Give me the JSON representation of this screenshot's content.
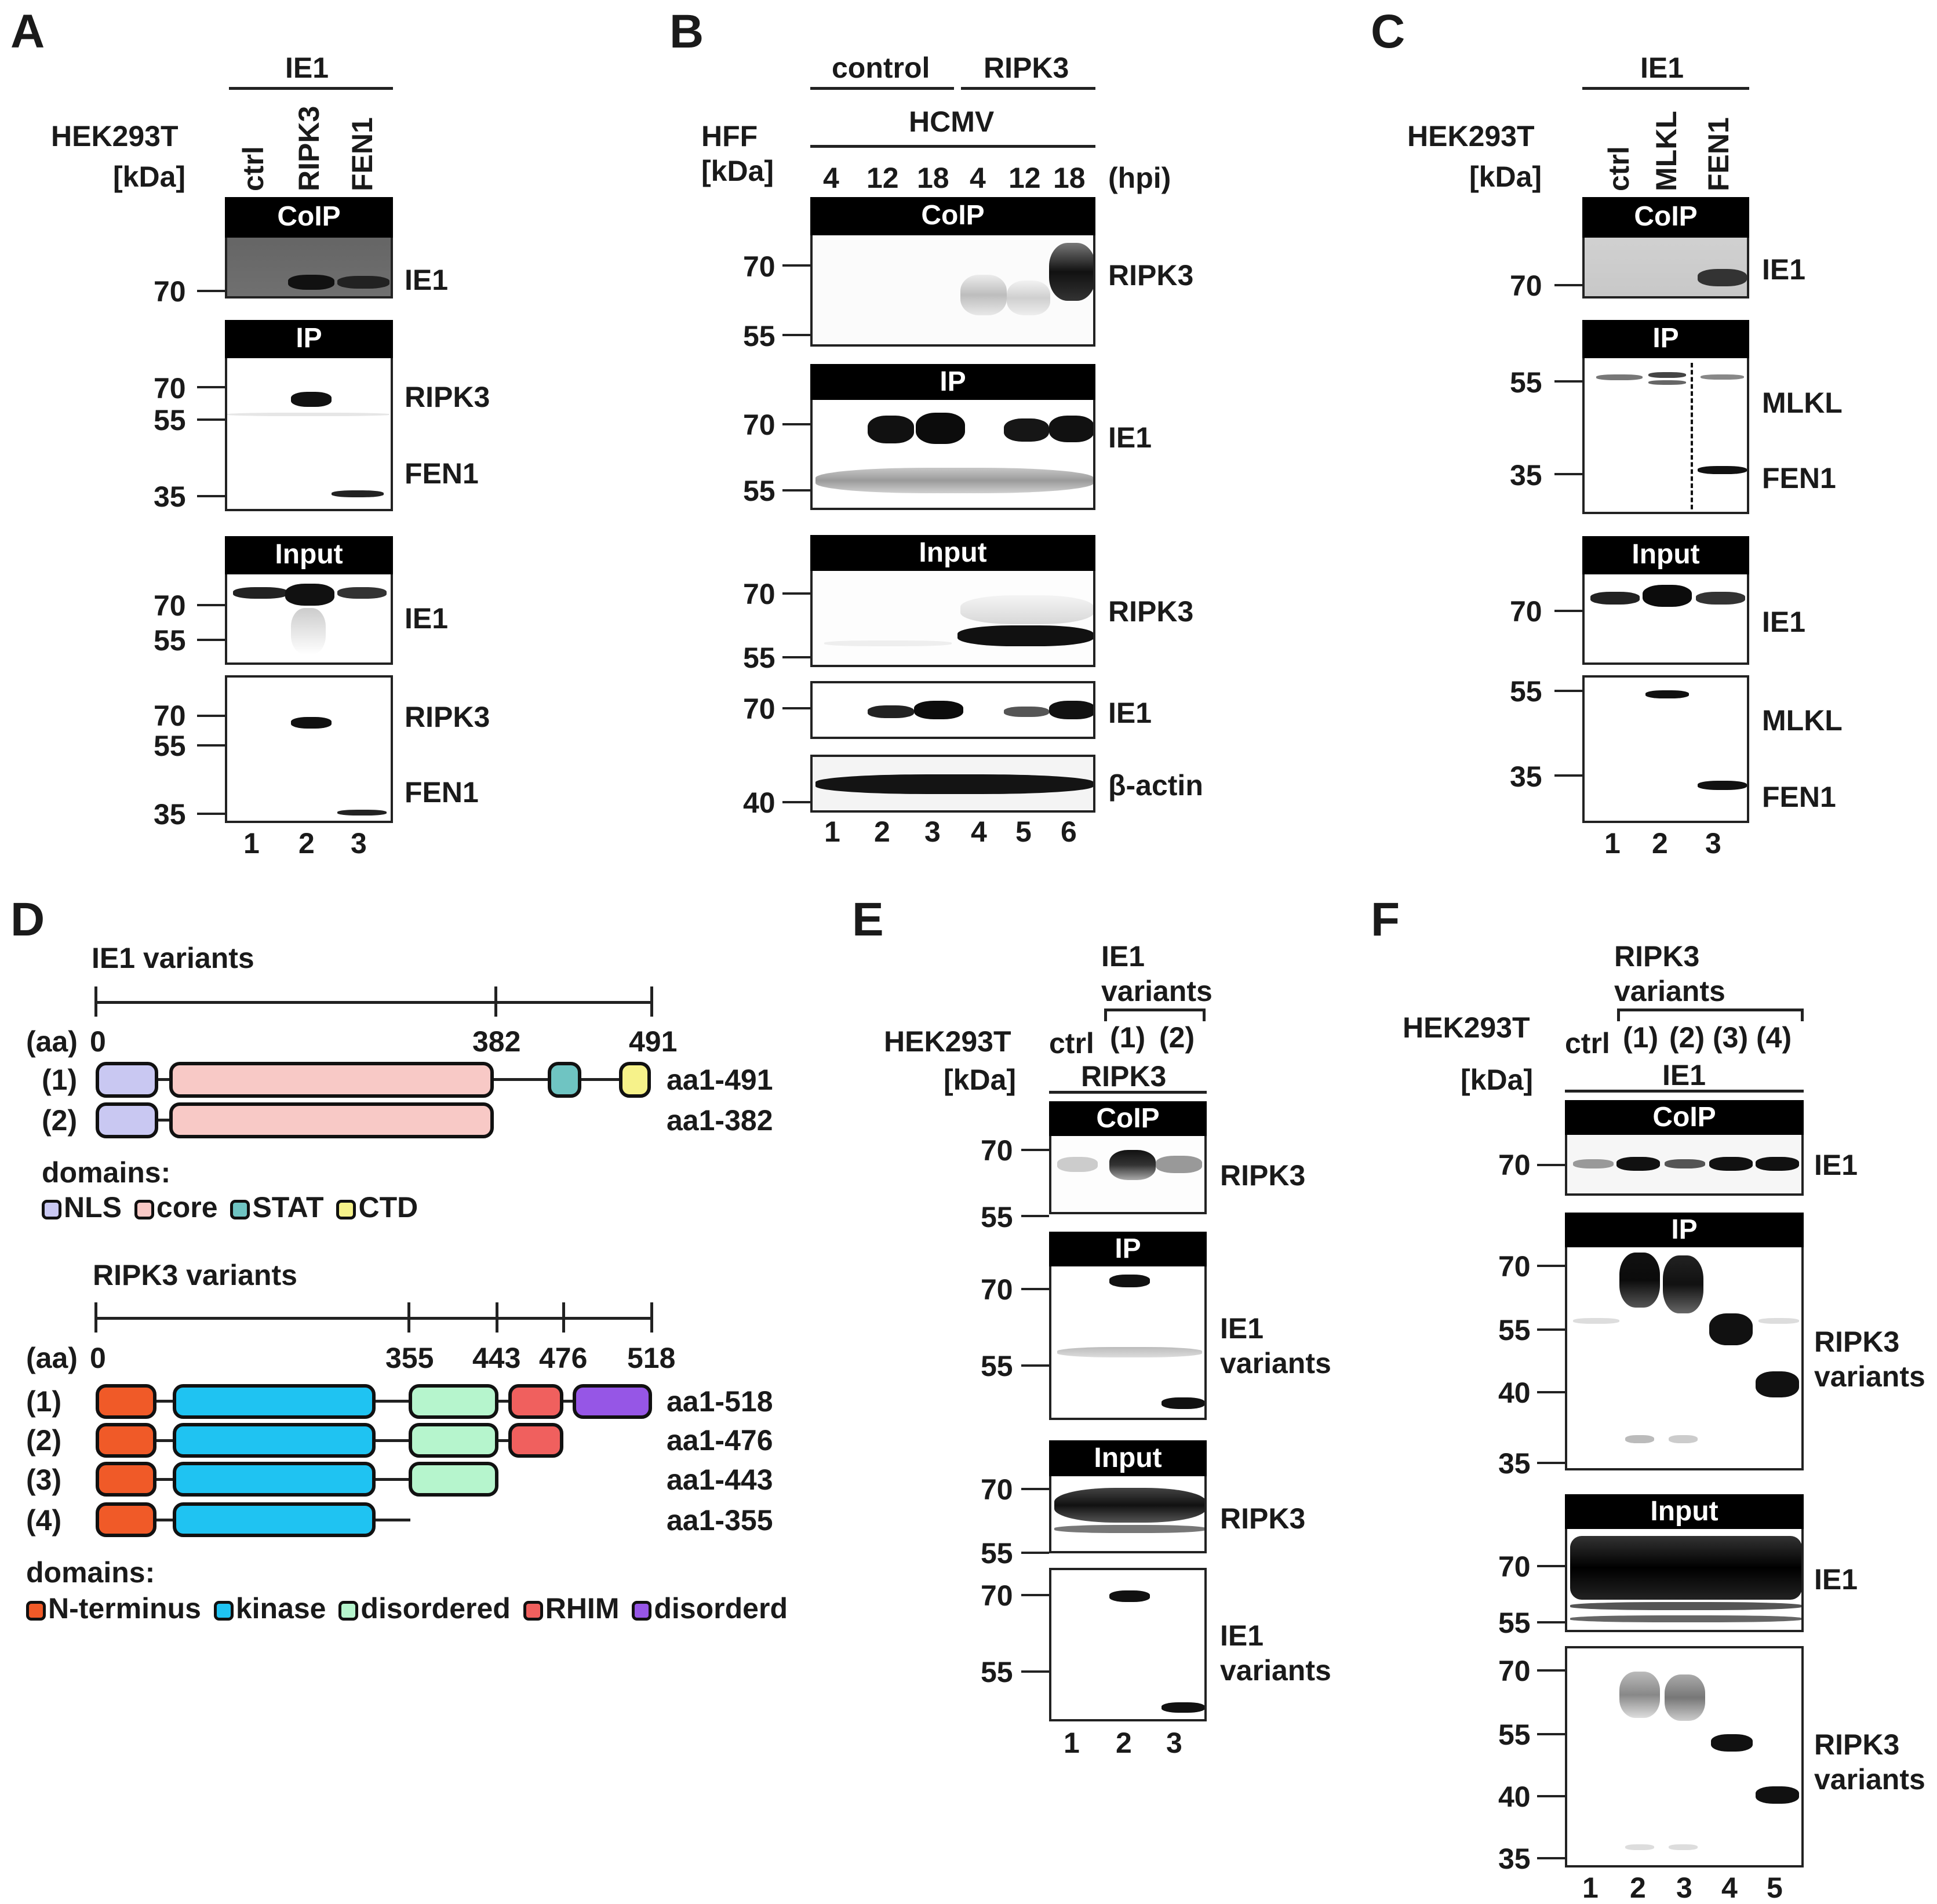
{
  "panels": {
    "A": {
      "letter": "A",
      "group_label": "IE1",
      "cell_line": "HEK293T",
      "kda": "[kDa]",
      "lanes_top": [
        "ctrl",
        "RIPK3",
        "FEN1"
      ],
      "lane_numbers": [
        "1",
        "2",
        "3"
      ],
      "blots": [
        {
          "header": "CoIP",
          "markers": [
            "70"
          ],
          "labels": [
            "IE1"
          ]
        },
        {
          "header": "IP",
          "markers": [
            "70",
            "55",
            "35"
          ],
          "labels": [
            "RIPK3",
            "FEN1"
          ]
        },
        {
          "header": "Input",
          "markers": [
            "70",
            "55"
          ],
          "labels": [
            "IE1"
          ]
        },
        {
          "header": "",
          "markers": [
            "70",
            "55",
            "35"
          ],
          "labels": [
            "RIPK3",
            "FEN1"
          ]
        }
      ]
    },
    "B": {
      "letter": "B",
      "group_labels": [
        "control",
        "RIPK3"
      ],
      "cell_line": "HFF",
      "kda": "[kDa]",
      "virus": "HCMV",
      "timepoints": [
        "4",
        "12",
        "18",
        "4",
        "12",
        "18"
      ],
      "time_unit": "(hpi)",
      "lane_numbers": [
        "1",
        "2",
        "3",
        "4",
        "5",
        "6"
      ],
      "blots": [
        {
          "header": "CoIP",
          "markers": [
            "70",
            "55"
          ],
          "labels": [
            "RIPK3"
          ]
        },
        {
          "header": "IP",
          "markers": [
            "70",
            "55"
          ],
          "labels": [
            "IE1"
          ]
        },
        {
          "header": "Input",
          "markers": [
            "70",
            "55"
          ],
          "labels": [
            "RIPK3"
          ]
        },
        {
          "header": "",
          "markers": [
            "70"
          ],
          "labels": [
            "IE1"
          ]
        },
        {
          "header": "",
          "markers": [
            "40"
          ],
          "labels": [
            "β-actin"
          ]
        }
      ]
    },
    "C": {
      "letter": "C",
      "group_label": "IE1",
      "cell_line": "HEK293T",
      "kda": "[kDa]",
      "lanes_top": [
        "ctrl",
        "MLKL",
        "FEN1"
      ],
      "lane_numbers": [
        "1",
        "2",
        "3"
      ],
      "blots": [
        {
          "header": "CoIP",
          "markers": [
            "70"
          ],
          "labels": [
            "IE1"
          ]
        },
        {
          "header": "IP",
          "markers": [
            "55",
            "35"
          ],
          "labels": [
            "MLKL",
            "FEN1"
          ]
        },
        {
          "header": "Input",
          "markers": [
            "70"
          ],
          "labels": [
            "IE1"
          ]
        },
        {
          "header": "",
          "markers": [
            "55",
            "35"
          ],
          "labels": [
            "MLKL",
            "FEN1"
          ]
        }
      ]
    },
    "D": {
      "letter": "D",
      "ie1": {
        "title": "IE1 variants",
        "aa_label": "(aa)",
        "ticks": [
          "0",
          "382",
          "491"
        ],
        "variants": [
          {
            "id": "(1)",
            "range": "aa1-491"
          },
          {
            "id": "(2)",
            "range": "aa1-382"
          }
        ],
        "domains_title": "domains:",
        "domains": [
          {
            "name": "NLS",
            "color": "#c9c8f2"
          },
          {
            "name": "core",
            "color": "#f8c9c6"
          },
          {
            "name": "STAT",
            "color": "#6fc4c2"
          },
          {
            "name": "CTD",
            "color": "#f6f28a"
          }
        ]
      },
      "ripk3": {
        "title": "RIPK3 variants",
        "aa_label": "(aa)",
        "ticks": [
          "0",
          "355",
          "443",
          "476",
          "518"
        ],
        "variants": [
          {
            "id": "(1)",
            "range": "aa1-518"
          },
          {
            "id": "(2)",
            "range": "aa1-476"
          },
          {
            "id": "(3)",
            "range": "aa1-443"
          },
          {
            "id": "(4)",
            "range": "aa1-355"
          }
        ],
        "domains_title": "domains:",
        "domains": [
          {
            "name": "N-terminus",
            "color": "#f05a28"
          },
          {
            "name": "kinase",
            "color": "#1fc3f2"
          },
          {
            "name": "disordered",
            "color": "#b6f5cd"
          },
          {
            "name": "RHIM",
            "color": "#f0605e"
          },
          {
            "name": "disorderd",
            "color": "#9656e6"
          }
        ]
      }
    },
    "E": {
      "letter": "E",
      "group_label": "IE1 variants",
      "cell_line": "HEK293T",
      "kda": "[kDa]",
      "lanes_top": [
        "ctrl",
        "(1)",
        "(2)"
      ],
      "sub_label": "RIPK3",
      "lane_numbers": [
        "1",
        "2",
        "3"
      ],
      "blots": [
        {
          "header": "CoIP",
          "markers": [
            "70",
            "55"
          ],
          "labels": [
            "RIPK3"
          ]
        },
        {
          "header": "IP",
          "markers": [
            "70",
            "55"
          ],
          "labels": [
            "IE1 variants"
          ]
        },
        {
          "header": "Input",
          "markers": [
            "70",
            "55"
          ],
          "labels": [
            "RIPK3"
          ]
        },
        {
          "header": "",
          "markers": [
            "70",
            "55"
          ],
          "labels": [
            "IE1 variants"
          ]
        }
      ]
    },
    "F": {
      "letter": "F",
      "group_label": "RIPK3 variants",
      "cell_line": "HEK293T",
      "kda": "[kDa]",
      "lanes_top": [
        "ctrl",
        "(1)",
        "(2)",
        "(3)",
        "(4)"
      ],
      "sub_label": "IE1",
      "lane_numbers": [
        "1",
        "2",
        "3",
        "4",
        "5"
      ],
      "blots": [
        {
          "header": "CoIP",
          "markers": [
            "70"
          ],
          "labels": [
            "IE1"
          ]
        },
        {
          "header": "IP",
          "markers": [
            "70",
            "55",
            "40",
            "35"
          ],
          "labels": [
            "RIPK3 variants"
          ]
        },
        {
          "header": "Input",
          "markers": [
            "70",
            "55"
          ],
          "labels": [
            "IE1"
          ]
        },
        {
          "header": "",
          "markers": [
            "70",
            "55",
            "40",
            "35"
          ],
          "labels": [
            "RIPK3 variants"
          ]
        }
      ]
    }
  }
}
